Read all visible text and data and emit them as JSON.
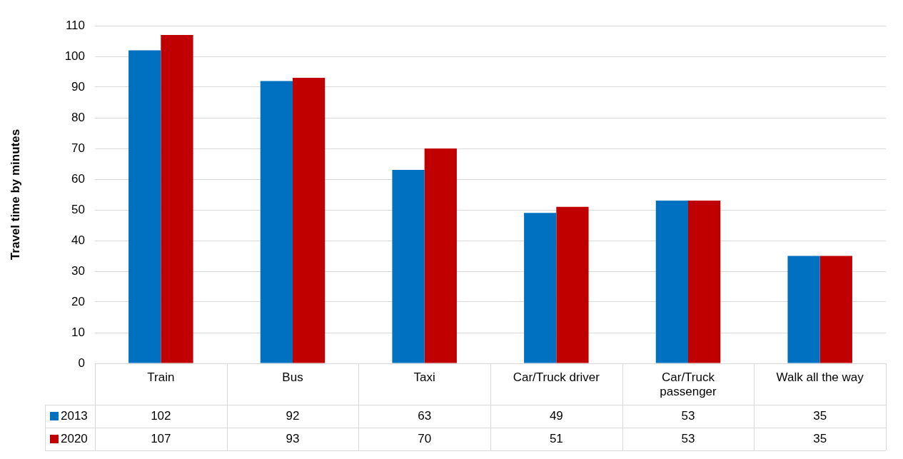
{
  "chart_data": {
    "type": "bar",
    "ylabel": "Travel time by minutes",
    "categories": [
      "Train",
      "Bus",
      "Taxi",
      "Car/Truck driver",
      "Car/Truck passenger",
      "Walk all the way"
    ],
    "series": [
      {
        "name": "2013",
        "color": "#0070c0",
        "values": [
          102,
          92,
          63,
          49,
          53,
          35
        ]
      },
      {
        "name": "2020",
        "color": "#c00000",
        "values": [
          107,
          93,
          70,
          51,
          53,
          35
        ]
      }
    ],
    "ylim": [
      0,
      110
    ],
    "yticks": [
      0,
      10,
      20,
      30,
      40,
      50,
      60,
      70,
      80,
      90,
      100,
      110
    ],
    "grid": "y",
    "legend": "bottom",
    "data_labels": true
  }
}
